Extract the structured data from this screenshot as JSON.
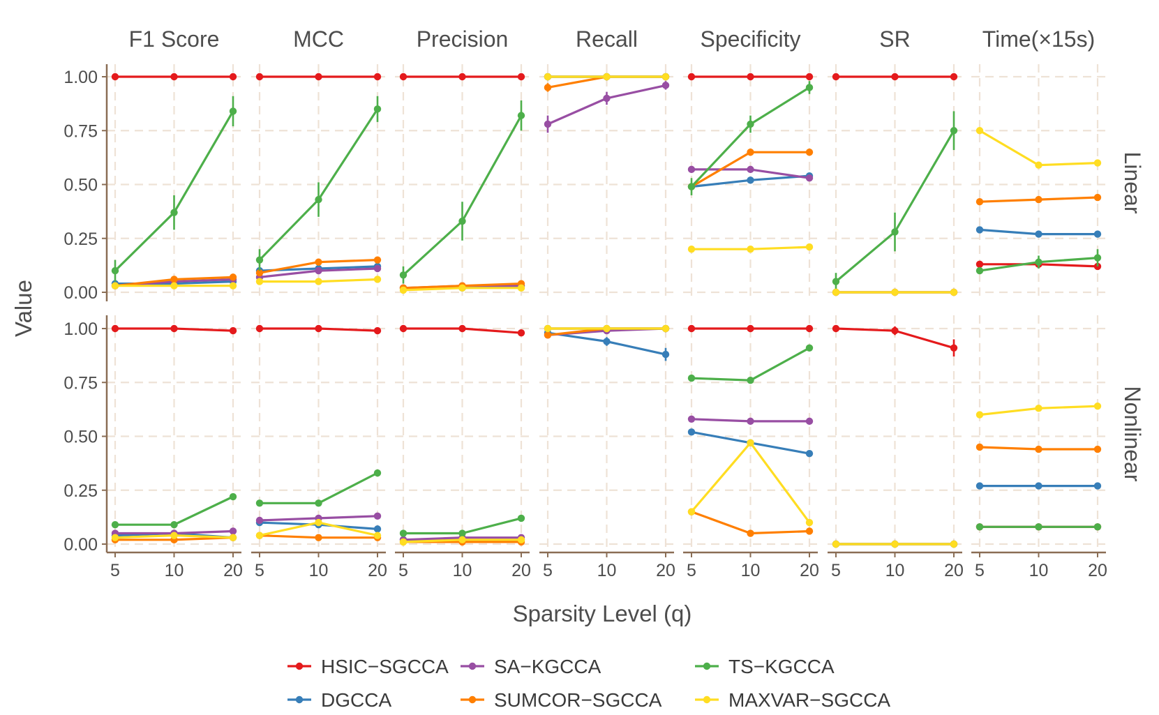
{
  "chart_data": {
    "type": "line",
    "xlabel": "Sparsity Level (q)",
    "ylabel": "Value",
    "x": [
      5,
      10,
      20
    ],
    "x_tick_labels": [
      "5",
      "10",
      "20"
    ],
    "ylim": [
      0,
      1
    ],
    "y_ticks": [
      0,
      0.25,
      0.5,
      0.75,
      1.0
    ],
    "y_tick_labels": [
      "0.00",
      "0.25",
      "0.50",
      "0.75",
      "1.00"
    ],
    "grid": true,
    "legend_position": "bottom",
    "columns": [
      "F1 Score",
      "MCC",
      "Precision",
      "Recall",
      "Specificity",
      "SR",
      "Time(×15s)"
    ],
    "rows": [
      "Linear",
      "Nonlinear"
    ],
    "methods": [
      {
        "name": "HSIC−SGCCA",
        "color": "#e41a1c"
      },
      {
        "name": "DGCCA",
        "color": "#377eb8"
      },
      {
        "name": "SA−KGCCA",
        "color": "#984ea3"
      },
      {
        "name": "SUMCOR−SGCCA",
        "color": "#ff7f00"
      },
      {
        "name": "TS−KGCCA",
        "color": "#4daf4a"
      },
      {
        "name": "MAXVAR−SGCCA",
        "color": "#ffdd22"
      }
    ],
    "panels": [
      {
        "row": "Linear",
        "column": "F1 Score",
        "series": [
          {
            "method": "HSIC−SGCCA",
            "values": [
              1.0,
              1.0,
              1.0
            ]
          },
          {
            "method": "DGCCA",
            "values": [
              0.04,
              0.04,
              0.05
            ]
          },
          {
            "method": "SA−KGCCA",
            "values": [
              0.03,
              0.05,
              0.06
            ]
          },
          {
            "method": "SUMCOR−SGCCA",
            "values": [
              0.03,
              0.06,
              0.07
            ]
          },
          {
            "method": "TS−KGCCA",
            "values": [
              0.1,
              0.37,
              0.84
            ],
            "errors": [
              0.05,
              0.08,
              0.07
            ]
          },
          {
            "method": "MAXVAR−SGCCA",
            "values": [
              0.03,
              0.03,
              0.03
            ]
          }
        ]
      },
      {
        "row": "Linear",
        "column": "MCC",
        "series": [
          {
            "method": "HSIC−SGCCA",
            "values": [
              1.0,
              1.0,
              1.0
            ]
          },
          {
            "method": "DGCCA",
            "values": [
              0.1,
              0.11,
              0.12
            ]
          },
          {
            "method": "SA−KGCCA",
            "values": [
              0.07,
              0.1,
              0.11
            ]
          },
          {
            "method": "SUMCOR−SGCCA",
            "values": [
              0.09,
              0.14,
              0.15
            ]
          },
          {
            "method": "TS−KGCCA",
            "values": [
              0.15,
              0.43,
              0.85
            ],
            "errors": [
              0.05,
              0.08,
              0.06
            ]
          },
          {
            "method": "MAXVAR−SGCCA",
            "values": [
              0.05,
              0.05,
              0.06
            ]
          }
        ]
      },
      {
        "row": "Linear",
        "column": "Precision",
        "series": [
          {
            "method": "HSIC−SGCCA",
            "values": [
              1.0,
              1.0,
              1.0
            ]
          },
          {
            "method": "DGCCA",
            "values": [
              0.02,
              0.02,
              0.03
            ]
          },
          {
            "method": "SA−KGCCA",
            "values": [
              0.02,
              0.03,
              0.03
            ]
          },
          {
            "method": "SUMCOR−SGCCA",
            "values": [
              0.02,
              0.03,
              0.04
            ]
          },
          {
            "method": "TS−KGCCA",
            "values": [
              0.08,
              0.33,
              0.82
            ],
            "errors": [
              0.04,
              0.09,
              0.07
            ]
          },
          {
            "method": "MAXVAR−SGCCA",
            "values": [
              0.01,
              0.02,
              0.02
            ]
          }
        ]
      },
      {
        "row": "Linear",
        "column": "Recall",
        "series": [
          {
            "method": "HSIC−SGCCA",
            "values": [
              1.0,
              1.0,
              1.0
            ]
          },
          {
            "method": "DGCCA",
            "values": [
              1.0,
              1.0,
              1.0
            ]
          },
          {
            "method": "SA−KGCCA",
            "values": [
              0.78,
              0.9,
              0.96
            ],
            "errors": [
              0.04,
              0.03,
              0.02
            ]
          },
          {
            "method": "SUMCOR−SGCCA",
            "values": [
              0.95,
              1.0,
              1.0
            ],
            "errors": [
              0.02,
              0.0,
              0.0
            ]
          },
          {
            "method": "TS−KGCCA",
            "values": [
              1.0,
              1.0,
              1.0
            ]
          },
          {
            "method": "MAXVAR−SGCCA",
            "values": [
              1.0,
              1.0,
              1.0
            ]
          }
        ]
      },
      {
        "row": "Linear",
        "column": "Specificity",
        "series": [
          {
            "method": "HSIC−SGCCA",
            "values": [
              1.0,
              1.0,
              1.0
            ]
          },
          {
            "method": "DGCCA",
            "values": [
              0.49,
              0.52,
              0.54
            ]
          },
          {
            "method": "SA−KGCCA",
            "values": [
              0.57,
              0.57,
              0.53
            ]
          },
          {
            "method": "SUMCOR−SGCCA",
            "values": [
              0.49,
              0.65,
              0.65
            ]
          },
          {
            "method": "TS−KGCCA",
            "values": [
              0.49,
              0.78,
              0.95
            ],
            "errors": [
              0.04,
              0.04,
              0.03
            ]
          },
          {
            "method": "MAXVAR−SGCCA",
            "values": [
              0.2,
              0.2,
              0.21
            ]
          }
        ]
      },
      {
        "row": "Linear",
        "column": "SR",
        "series": [
          {
            "method": "HSIC−SGCCA",
            "values": [
              1.0,
              1.0,
              1.0
            ]
          },
          {
            "method": "DGCCA",
            "values": [
              0.0,
              0.0,
              0.0
            ]
          },
          {
            "method": "SA−KGCCA",
            "values": [
              0.0,
              0.0,
              0.0
            ]
          },
          {
            "method": "SUMCOR−SGCCA",
            "values": [
              0.0,
              0.0,
              0.0
            ]
          },
          {
            "method": "TS−KGCCA",
            "values": [
              0.05,
              0.28,
              0.75
            ],
            "errors": [
              0.04,
              0.09,
              0.09
            ]
          },
          {
            "method": "MAXVAR−SGCCA",
            "values": [
              0.0,
              0.0,
              0.0
            ]
          }
        ]
      },
      {
        "row": "Linear",
        "column": "Time(×15s)",
        "series": [
          {
            "method": "HSIC−SGCCA",
            "values": [
              0.13,
              0.13,
              0.12
            ]
          },
          {
            "method": "DGCCA",
            "values": [
              0.29,
              0.27,
              0.27
            ]
          },
          {
            "method": "SUMCOR−SGCCA",
            "values": [
              0.42,
              0.43,
              0.44
            ]
          },
          {
            "method": "TS−KGCCA",
            "values": [
              0.1,
              0.14,
              0.16
            ],
            "errors": [
              0.0,
              0.03,
              0.04
            ]
          },
          {
            "method": "MAXVAR−SGCCA",
            "values": [
              0.75,
              0.59,
              0.6
            ]
          }
        ]
      },
      {
        "row": "Nonlinear",
        "column": "F1 Score",
        "series": [
          {
            "method": "HSIC−SGCCA",
            "values": [
              1.0,
              1.0,
              0.99
            ]
          },
          {
            "method": "DGCCA",
            "values": [
              0.04,
              0.05,
              0.03
            ]
          },
          {
            "method": "SA−KGCCA",
            "values": [
              0.05,
              0.05,
              0.06
            ]
          },
          {
            "method": "SUMCOR−SGCCA",
            "values": [
              0.02,
              0.02,
              0.03
            ]
          },
          {
            "method": "TS−KGCCA",
            "values": [
              0.09,
              0.09,
              0.22
            ]
          },
          {
            "method": "MAXVAR−SGCCA",
            "values": [
              0.03,
              0.04,
              0.03
            ]
          }
        ]
      },
      {
        "row": "Nonlinear",
        "column": "MCC",
        "series": [
          {
            "method": "HSIC−SGCCA",
            "values": [
              1.0,
              1.0,
              0.99
            ]
          },
          {
            "method": "DGCCA",
            "values": [
              0.1,
              0.09,
              0.07
            ]
          },
          {
            "method": "SA−KGCCA",
            "values": [
              0.11,
              0.12,
              0.13
            ]
          },
          {
            "method": "SUMCOR−SGCCA",
            "values": [
              0.04,
              0.03,
              0.03
            ]
          },
          {
            "method": "TS−KGCCA",
            "values": [
              0.19,
              0.19,
              0.33
            ]
          },
          {
            "method": "MAXVAR−SGCCA",
            "values": [
              0.04,
              0.1,
              0.04
            ]
          }
        ]
      },
      {
        "row": "Nonlinear",
        "column": "Precision",
        "series": [
          {
            "method": "HSIC−SGCCA",
            "values": [
              1.0,
              1.0,
              0.98
            ]
          },
          {
            "method": "DGCCA",
            "values": [
              0.02,
              0.02,
              0.02
            ]
          },
          {
            "method": "SA−KGCCA",
            "values": [
              0.02,
              0.03,
              0.03
            ]
          },
          {
            "method": "SUMCOR−SGCCA",
            "values": [
              0.01,
              0.01,
              0.01
            ]
          },
          {
            "method": "TS−KGCCA",
            "values": [
              0.05,
              0.05,
              0.12
            ]
          },
          {
            "method": "MAXVAR−SGCCA",
            "values": [
              0.01,
              0.02,
              0.02
            ]
          }
        ]
      },
      {
        "row": "Nonlinear",
        "column": "Recall",
        "series": [
          {
            "method": "HSIC−SGCCA",
            "values": [
              1.0,
              1.0,
              1.0
            ]
          },
          {
            "method": "DGCCA",
            "values": [
              0.98,
              0.94,
              0.88
            ],
            "errors": [
              0.02,
              0.02,
              0.03
            ]
          },
          {
            "method": "SA−KGCCA",
            "values": [
              0.97,
              0.99,
              1.0
            ]
          },
          {
            "method": "SUMCOR−SGCCA",
            "values": [
              0.97,
              1.0,
              1.0
            ]
          },
          {
            "method": "TS−KGCCA",
            "values": [
              1.0,
              1.0,
              1.0
            ]
          },
          {
            "method": "MAXVAR−SGCCA",
            "values": [
              1.0,
              1.0,
              1.0
            ]
          }
        ]
      },
      {
        "row": "Nonlinear",
        "column": "Specificity",
        "series": [
          {
            "method": "HSIC−SGCCA",
            "values": [
              1.0,
              1.0,
              1.0
            ]
          },
          {
            "method": "DGCCA",
            "values": [
              0.52,
              0.47,
              0.42
            ]
          },
          {
            "method": "SA−KGCCA",
            "values": [
              0.58,
              0.57,
              0.57
            ]
          },
          {
            "method": "SUMCOR−SGCCA",
            "values": [
              0.15,
              0.05,
              0.06
            ]
          },
          {
            "method": "TS−KGCCA",
            "values": [
              0.77,
              0.76,
              0.91
            ]
          },
          {
            "method": "MAXVAR−SGCCA",
            "values": [
              0.15,
              0.47,
              0.1
            ]
          }
        ]
      },
      {
        "row": "Nonlinear",
        "column": "SR",
        "series": [
          {
            "method": "HSIC−SGCCA",
            "values": [
              1.0,
              0.99,
              0.91
            ],
            "errors": [
              0.0,
              0.02,
              0.04
            ]
          },
          {
            "method": "DGCCA",
            "values": [
              0.0,
              0.0,
              0.0
            ]
          },
          {
            "method": "SA−KGCCA",
            "values": [
              0.0,
              0.0,
              0.0
            ]
          },
          {
            "method": "SUMCOR−SGCCA",
            "values": [
              0.0,
              0.0,
              0.0
            ]
          },
          {
            "method": "TS−KGCCA",
            "values": [
              0.0,
              0.0,
              0.0
            ]
          },
          {
            "method": "MAXVAR−SGCCA",
            "values": [
              0.0,
              0.0,
              0.0
            ]
          }
        ]
      },
      {
        "row": "Nonlinear",
        "column": "Time(×15s)",
        "series": [
          {
            "method": "HSIC−SGCCA",
            "values": [
              0.08,
              0.08,
              0.08
            ]
          },
          {
            "method": "DGCCA",
            "values": [
              0.27,
              0.27,
              0.27
            ]
          },
          {
            "method": "SUMCOR−SGCCA",
            "values": [
              0.45,
              0.44,
              0.44
            ]
          },
          {
            "method": "TS−KGCCA",
            "values": [
              0.08,
              0.08,
              0.08
            ]
          },
          {
            "method": "MAXVAR−SGCCA",
            "values": [
              0.6,
              0.63,
              0.64
            ]
          }
        ]
      }
    ]
  }
}
